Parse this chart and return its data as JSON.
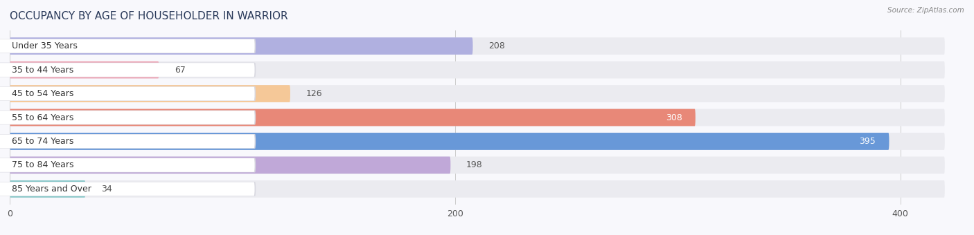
{
  "title": "OCCUPANCY BY AGE OF HOUSEHOLDER IN WARRIOR",
  "source": "Source: ZipAtlas.com",
  "categories": [
    "Under 35 Years",
    "35 to 44 Years",
    "45 to 54 Years",
    "55 to 64 Years",
    "65 to 74 Years",
    "75 to 84 Years",
    "85 Years and Over"
  ],
  "values": [
    208,
    67,
    126,
    308,
    395,
    198,
    34
  ],
  "bar_colors": [
    "#b0b0e0",
    "#f0a8b8",
    "#f5c898",
    "#e88878",
    "#6898d8",
    "#c0a8d8",
    "#88c8c8"
  ],
  "bar_bg_color": "#ebebf0",
  "bg_color": "#f8f8fc",
  "xlim_max": 420,
  "xticks": [
    0,
    200,
    400
  ],
  "figsize": [
    14.06,
    3.4
  ],
  "dpi": 100,
  "title_fontsize": 11,
  "tick_fontsize": 9,
  "label_fontsize": 9,
  "value_fontsize": 9
}
